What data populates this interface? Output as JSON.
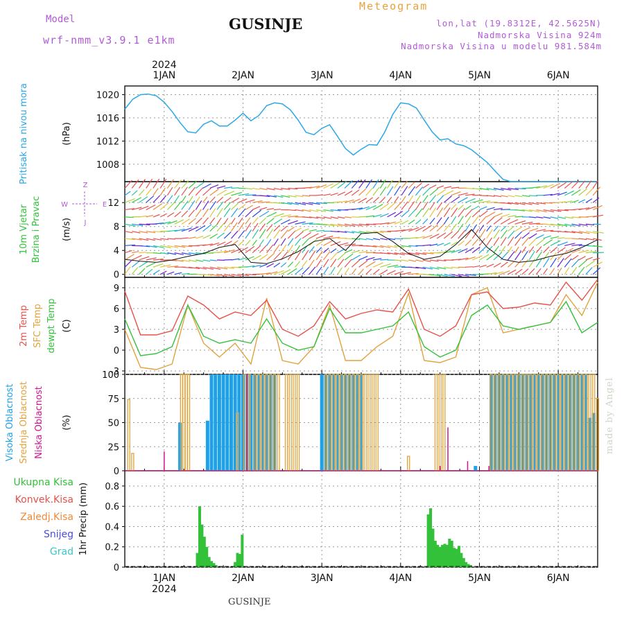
{
  "header": {
    "title": "GUSINJE",
    "meteogram_label": "Meteogram",
    "model_label": "Model",
    "model_name": "wrf-nmm_v3.9.1 e1km",
    "coords": "lon,lat (19.8312E, 42.5625N)",
    "elevation": "Nadmorska Visina 924m",
    "model_elevation": "Nadmorska Visina u modelu 981.584m"
  },
  "footer": {
    "location": "GUSINJE"
  },
  "credit": "made by Angel",
  "colors": {
    "pressure": "#2aa7e8",
    "temp": "#e8504a",
    "sfc": "#e0a33c",
    "dew": "#33c13a",
    "high": "#1ea1e6",
    "mid": "#e0a33c",
    "low": "#d1148f",
    "precip": "#33c13a",
    "label_green": "#33c13a",
    "label_red": "#e8504a",
    "label_orange": "#f0893a",
    "label_blue": "#4a4ae8",
    "label_cyan": "#38c8c8",
    "violet": "#b15bd6"
  },
  "chart_data": [
    {
      "type": "line",
      "panel": "pressure",
      "ylabel": "(hPa)",
      "side_labels": [
        "Pritisak na nivou mora"
      ],
      "x_axis": {
        "year": "2024",
        "ticks": [
          "1JAN",
          "2JAN",
          "3JAN",
          "4JAN",
          "5JAN",
          "6JAN"
        ],
        "range_days": [
          -0.5,
          5.5
        ]
      },
      "ylim": [
        1005.0,
        1021.5
      ],
      "yticks": [
        "1008",
        "1012",
        "1016",
        "1020"
      ],
      "series": [
        {
          "x": [
            -0.5,
            -0.4,
            -0.3,
            -0.2,
            -0.1,
            0,
            0.1,
            0.2,
            0.3,
            0.4,
            0.5,
            0.6,
            0.7,
            0.8,
            0.9,
            1,
            1.1,
            1.2,
            1.3,
            1.4,
            1.5,
            1.6,
            1.7,
            1.8,
            1.9,
            2,
            2.1,
            2.2,
            2.3,
            2.4,
            2.5,
            2.6,
            2.7,
            2.8,
            2.9,
            3,
            3.1,
            3.2,
            3.3,
            3.4,
            3.5,
            3.6,
            3.7,
            3.8,
            3.9,
            4,
            4.1,
            4.2,
            4.3,
            4.4,
            4.5,
            4.6,
            4.7,
            4.8,
            4.9,
            5,
            5.1,
            5.2,
            5.3,
            5.4,
            5.5
          ],
          "y": [
            1017.5,
            1019.2,
            1020.0,
            1020.1,
            1019.8,
            1018.7,
            1017.1,
            1015.2,
            1013.6,
            1013.4,
            1014.9,
            1015.5,
            1014.6,
            1014.6,
            1015.6,
            1016.8,
            1015.5,
            1016.4,
            1018.1,
            1018.6,
            1018.4,
            1017.4,
            1015.6,
            1013.5,
            1013.1,
            1014.2,
            1014.8,
            1012.8,
            1010.7,
            1009.6,
            1010.6,
            1011.4,
            1011.3,
            1013.6,
            1016.6,
            1018.6,
            1018.4,
            1017.7,
            1015.6,
            1013.6,
            1012.2,
            1012.4,
            1011.5,
            1011.2,
            1010.5,
            1009.4,
            1008.3,
            1006.8,
            1005.4,
            1005.0,
            1005.0,
            1005.0,
            1005.0,
            1005.0,
            1005.0,
            1005.0,
            1005.0,
            1005.0,
            1005.0,
            1005.0,
            1005.0
          ]
        }
      ]
    },
    {
      "type": "line",
      "panel": "wind",
      "ylabel": "(m/s)",
      "side_labels": [
        "10m Vjetar",
        "Brzina i Pravac"
      ],
      "compass": [
        "N",
        "E",
        "S",
        "W",
        "Z",
        "I",
        "J"
      ],
      "ylim": [
        -0.5,
        15.5
      ],
      "yticks": [
        "0",
        "4",
        "8",
        "12"
      ],
      "series": [
        {
          "name": "speed",
          "x": [
            -0.5,
            -0.3,
            -0.1,
            0.1,
            0.3,
            0.5,
            0.7,
            0.9,
            1.1,
            1.3,
            1.5,
            1.7,
            1.9,
            2.1,
            2.3,
            2.5,
            2.7,
            2.9,
            3.1,
            3.3,
            3.5,
            3.7,
            3.9,
            4.1,
            4.3,
            4.5,
            4.7,
            4.9,
            5.1,
            5.3,
            5.5
          ],
          "y": [
            2.5,
            2.2,
            2.0,
            2.4,
            3.0,
            3.5,
            4.5,
            5.0,
            2.0,
            1.8,
            2.6,
            3.8,
            5.5,
            6.0,
            4.0,
            6.8,
            7.0,
            5.5,
            3.5,
            2.5,
            3.0,
            5.0,
            7.5,
            4.5,
            2.5,
            2.0,
            2.3,
            3.0,
            3.5,
            4.5,
            5.8
          ]
        }
      ]
    },
    {
      "type": "line",
      "panel": "temperature",
      "ylabel": "(C)",
      "side_labels": [
        "2m Temp",
        "SFC Temp",
        "dewpt Temp"
      ],
      "ylim": [
        -3.5,
        10.5
      ],
      "yticks": [
        "-3",
        "0",
        "3",
        "6",
        "9"
      ],
      "series": [
        {
          "name": "2m Temp",
          "x": [
            -0.5,
            -0.3,
            -0.1,
            0.1,
            0.3,
            0.5,
            0.7,
            0.9,
            1.1,
            1.3,
            1.5,
            1.7,
            1.9,
            2.1,
            2.3,
            2.5,
            2.7,
            2.9,
            3.1,
            3.3,
            3.5,
            3.7,
            3.9,
            4.1,
            4.3,
            4.5,
            4.7,
            4.9,
            5.1,
            5.3,
            5.5
          ],
          "y": [
            8.5,
            2.2,
            2.2,
            2.8,
            7.8,
            6.5,
            4.5,
            5.5,
            5.0,
            7.2,
            3.0,
            2.0,
            3.5,
            7.0,
            4.5,
            5.3,
            5.8,
            5.5,
            8.8,
            3.0,
            2.0,
            3.5,
            8.0,
            8.4,
            6.0,
            6.2,
            6.8,
            6.5,
            9.8,
            7.2,
            10.2
          ]
        },
        {
          "name": "SFC Temp",
          "x": [
            -0.5,
            -0.3,
            -0.1,
            0.1,
            0.3,
            0.5,
            0.7,
            0.9,
            1.1,
            1.3,
            1.5,
            1.7,
            1.9,
            2.1,
            2.3,
            2.5,
            2.7,
            2.9,
            3.1,
            3.3,
            3.5,
            3.7,
            3.9,
            4.1,
            4.3,
            4.5,
            4.7,
            4.9,
            5.1,
            5.3,
            5.5
          ],
          "y": [
            3.0,
            -2.5,
            -2.8,
            -2.0,
            6.5,
            1.0,
            -1.0,
            1.0,
            -2.0,
            7.5,
            -1.5,
            -2.0,
            0.5,
            6.5,
            -1.5,
            -1.5,
            0.5,
            2.0,
            8.2,
            -1.5,
            -1.8,
            -1.0,
            8.0,
            9.0,
            2.5,
            3.0,
            3.5,
            4.0,
            8.0,
            5.0,
            9.8
          ]
        },
        {
          "name": "dewpt Temp",
          "x": [
            -0.5,
            -0.3,
            -0.1,
            0.1,
            0.3,
            0.5,
            0.7,
            0.9,
            1.1,
            1.3,
            1.5,
            1.7,
            1.9,
            2.1,
            2.3,
            2.5,
            2.7,
            2.9,
            3.1,
            3.3,
            3.5,
            3.7,
            3.9,
            4.1,
            4.3,
            4.5,
            4.7,
            4.9,
            5.1,
            5.3,
            5.5
          ],
          "y": [
            4.5,
            -0.8,
            -0.5,
            0.5,
            6.5,
            2.0,
            1.0,
            1.5,
            1.0,
            4.5,
            1.0,
            0.0,
            0.5,
            6.0,
            2.5,
            2.5,
            3.0,
            3.5,
            5.5,
            0.5,
            -1.0,
            0.0,
            5.0,
            6.5,
            3.5,
            3.0,
            3.5,
            4.0,
            7.0,
            2.5,
            4.0
          ]
        }
      ]
    },
    {
      "type": "bar",
      "panel": "cloud",
      "ylabel": "(%)",
      "side_labels": [
        "Visoka Oblacnost",
        "Srednja Oblacnost",
        "Niska Oblacnost"
      ],
      "ylim": [
        0,
        100
      ],
      "yticks": [
        "0",
        "25",
        "50",
        "75",
        "100"
      ],
      "series": [
        {
          "name": "Visoka Oblacnost",
          "x": [
            0.2,
            0.55,
            0.6,
            0.65,
            0.7,
            0.75,
            0.8,
            0.85,
            0.9,
            0.95,
            1.0,
            1.05,
            1.1,
            1.15,
            1.2,
            1.25,
            1.3,
            1.35,
            1.4,
            2.0,
            2.05,
            2.1,
            2.15,
            2.2,
            2.25,
            2.3,
            2.35,
            2.4,
            2.45,
            2.5,
            3.95,
            4.15,
            4.2,
            4.25,
            4.3,
            4.35,
            4.4,
            4.45,
            4.5,
            4.55,
            4.6,
            4.65,
            4.7,
            4.75,
            4.8,
            4.85,
            4.9,
            4.95,
            5.0,
            5.05,
            5.1,
            5.15,
            5.2,
            5.25,
            5.3,
            5.35,
            5.4,
            5.45
          ],
          "values": [
            50,
            52,
            100,
            100,
            100,
            100,
            100,
            100,
            100,
            100,
            100,
            100,
            100,
            100,
            100,
            100,
            100,
            100,
            100,
            100,
            100,
            100,
            100,
            100,
            100,
            100,
            100,
            100,
            100,
            100,
            5,
            100,
            100,
            100,
            100,
            100,
            100,
            100,
            100,
            100,
            100,
            100,
            100,
            100,
            100,
            100,
            100,
            100,
            100,
            100,
            100,
            100,
            100,
            100,
            100,
            100,
            55,
            60
          ]
        },
        {
          "name": "Srednja Oblacnost",
          "x": [
            -0.45,
            -0.4,
            0.22,
            0.25,
            0.28,
            0.31,
            0.93,
            1.02,
            1.08,
            1.15,
            1.2,
            1.25,
            1.3,
            1.35,
            1.4,
            1.45,
            1.55,
            1.6,
            1.65,
            1.7,
            2.05,
            2.1,
            2.15,
            2.2,
            2.25,
            2.3,
            2.35,
            2.4,
            2.45,
            2.5,
            2.55,
            2.6,
            2.65,
            2.7,
            3.1,
            3.45,
            3.5,
            3.55,
            4.15,
            4.2,
            4.25,
            4.3,
            4.35,
            4.4,
            4.45,
            4.5,
            4.55,
            4.6,
            4.65,
            4.7,
            4.75,
            4.8,
            4.85,
            4.9,
            4.95,
            5.0,
            5.05,
            5.1,
            5.15,
            5.2,
            5.25,
            5.3,
            5.35,
            5.4,
            5.45,
            5.5
          ],
          "values": [
            74,
            18,
            100,
            100,
            100,
            100,
            60,
            100,
            100,
            100,
            100,
            100,
            100,
            100,
            100,
            100,
            100,
            100,
            100,
            100,
            100,
            100,
            100,
            100,
            100,
            100,
            100,
            100,
            100,
            100,
            100,
            100,
            100,
            100,
            15,
            100,
            100,
            100,
            100,
            100,
            100,
            100,
            100,
            100,
            100,
            100,
            100,
            100,
            100,
            100,
            100,
            100,
            100,
            100,
            100,
            100,
            100,
            100,
            100,
            100,
            100,
            100,
            100,
            100,
            100,
            75
          ]
        },
        {
          "name": "Niska Oblacnost",
          "x": [
            0.0,
            1.05,
            3.5,
            3.6,
            3.85,
            4.12
          ],
          "values": [
            20,
            100,
            5,
            45,
            10,
            5
          ]
        }
      ]
    },
    {
      "type": "bar",
      "panel": "precip",
      "ylabel": "1hr Precip (mm)",
      "side_labels": [
        "Ukupna Kisa",
        "Konvek.Kisa",
        "Zaledj.Kisa",
        "Snijeg",
        "Grad"
      ],
      "ylim": [
        0,
        0.95
      ],
      "yticks": [
        "0",
        "0.2",
        "0.4",
        "0.6",
        "0.8"
      ],
      "series": [
        {
          "name": "Ukupna Kisa",
          "x": [
            0.42,
            0.45,
            0.48,
            0.51,
            0.54,
            0.57,
            0.6,
            0.63,
            0.66,
            0.9,
            0.93,
            0.96,
            0.99,
            1.02,
            1.05,
            1.08,
            1.11,
            3.35,
            3.38,
            3.41,
            3.44,
            3.47,
            3.5,
            3.53,
            3.56,
            3.59,
            3.62,
            3.65,
            3.68,
            3.71,
            3.74,
            3.77,
            3.8,
            3.83,
            3.86,
            3.89,
            3.92,
            3.95,
            3.98,
            4.01,
            4.04
          ],
          "values": [
            0.14,
            0.6,
            0.42,
            0.3,
            0.2,
            0.1,
            0.06,
            0.04,
            0.02,
            0.05,
            0.14,
            0.13,
            0.32,
            0.0,
            0.0,
            0.0,
            0.0,
            0.52,
            0.58,
            0.38,
            0.26,
            0.22,
            0.2,
            0.22,
            0.23,
            0.22,
            0.28,
            0.26,
            0.19,
            0.18,
            0.21,
            0.14,
            0.09,
            0.05,
            0.03,
            0.02,
            0.0,
            0.0,
            0.0,
            0.0,
            0.0
          ]
        }
      ]
    }
  ]
}
